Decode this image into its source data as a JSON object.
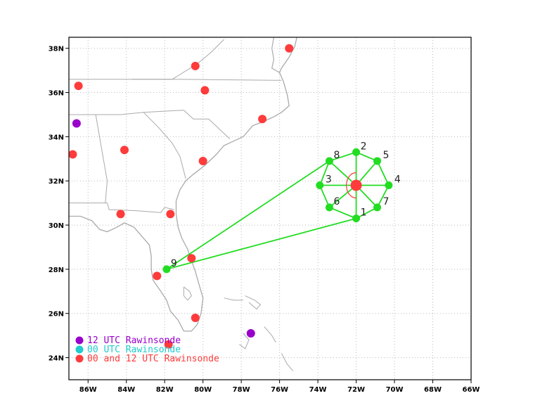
{
  "map": {
    "lon_range": [
      -87,
      -66
    ],
    "lat_range": [
      23,
      38.5
    ],
    "x_ticks": [
      {
        "lon": -86,
        "label": "86W"
      },
      {
        "lon": -84,
        "label": "84W"
      },
      {
        "lon": -82,
        "label": "82W"
      },
      {
        "lon": -80,
        "label": "80W"
      },
      {
        "lon": -78,
        "label": "78W"
      },
      {
        "lon": -76,
        "label": "76W"
      },
      {
        "lon": -74,
        "label": "74W"
      },
      {
        "lon": -72,
        "label": "72W"
      },
      {
        "lon": -70,
        "label": "70W"
      },
      {
        "lon": -68,
        "label": "68W"
      },
      {
        "lon": -66,
        "label": "66W"
      }
    ],
    "y_ticks": [
      {
        "lat": 24,
        "label": "24N"
      },
      {
        "lat": 26,
        "label": "26N"
      },
      {
        "lat": 28,
        "label": "28N"
      },
      {
        "lat": 30,
        "label": "30N"
      },
      {
        "lat": 32,
        "label": "32N"
      },
      {
        "lat": 34,
        "label": "34N"
      },
      {
        "lat": 36,
        "label": "36N"
      },
      {
        "lat": 38,
        "label": "38N"
      }
    ],
    "grid": true
  },
  "colors": {
    "rawinsonde_12": "#9900cc",
    "rawinsonde_00": "#22cccc",
    "rawinsonde_00_12": "#ff3b3b",
    "network": "#22dd22",
    "coast": "#aaaaaa",
    "center": "#ff3b3b"
  },
  "center": {
    "lon": -72.0,
    "lat": 31.8
  },
  "network_points": [
    {
      "id": "1",
      "lon": -72.0,
      "lat": 30.3
    },
    {
      "id": "2",
      "lon": -72.0,
      "lat": 33.3
    },
    {
      "id": "3",
      "lon": -73.9,
      "lat": 31.8
    },
    {
      "id": "4",
      "lon": -70.3,
      "lat": 31.8
    },
    {
      "id": "5",
      "lon": -70.9,
      "lat": 32.9
    },
    {
      "id": "6",
      "lon": -73.4,
      "lat": 30.8
    },
    {
      "id": "7",
      "lon": -70.9,
      "lat": 30.8
    },
    {
      "id": "8",
      "lon": -73.4,
      "lat": 32.9
    },
    {
      "id": "9",
      "lon": -81.9,
      "lat": 28.0
    }
  ],
  "stations_00_12": [
    {
      "lon": -86.5,
      "lat": 36.3
    },
    {
      "lon": -80.4,
      "lat": 37.2
    },
    {
      "lon": -79.9,
      "lat": 36.1
    },
    {
      "lon": -75.5,
      "lat": 38.0
    },
    {
      "lon": -76.9,
      "lat": 34.8
    },
    {
      "lon": -80.0,
      "lat": 32.9
    },
    {
      "lon": -84.1,
      "lat": 33.4
    },
    {
      "lon": -86.8,
      "lat": 33.2
    },
    {
      "lon": -84.3,
      "lat": 30.5
    },
    {
      "lon": -81.7,
      "lat": 30.5
    },
    {
      "lon": -80.6,
      "lat": 28.5
    },
    {
      "lon": -82.4,
      "lat": 27.7
    },
    {
      "lon": -80.4,
      "lat": 25.8
    },
    {
      "lon": -81.8,
      "lat": 24.6
    }
  ],
  "stations_12": [
    {
      "lon": -86.6,
      "lat": 34.6
    },
    {
      "lon": -77.5,
      "lat": 25.1
    }
  ],
  "legend": {
    "items": [
      {
        "label": "12 UTC Rawinsonde",
        "color": "#9900cc"
      },
      {
        "label": "00 UTC Rawinsonde",
        "color": "#22cccc"
      },
      {
        "label": "00 and 12 UTC Rawinsonde",
        "color": "#ff3b3b"
      }
    ]
  }
}
